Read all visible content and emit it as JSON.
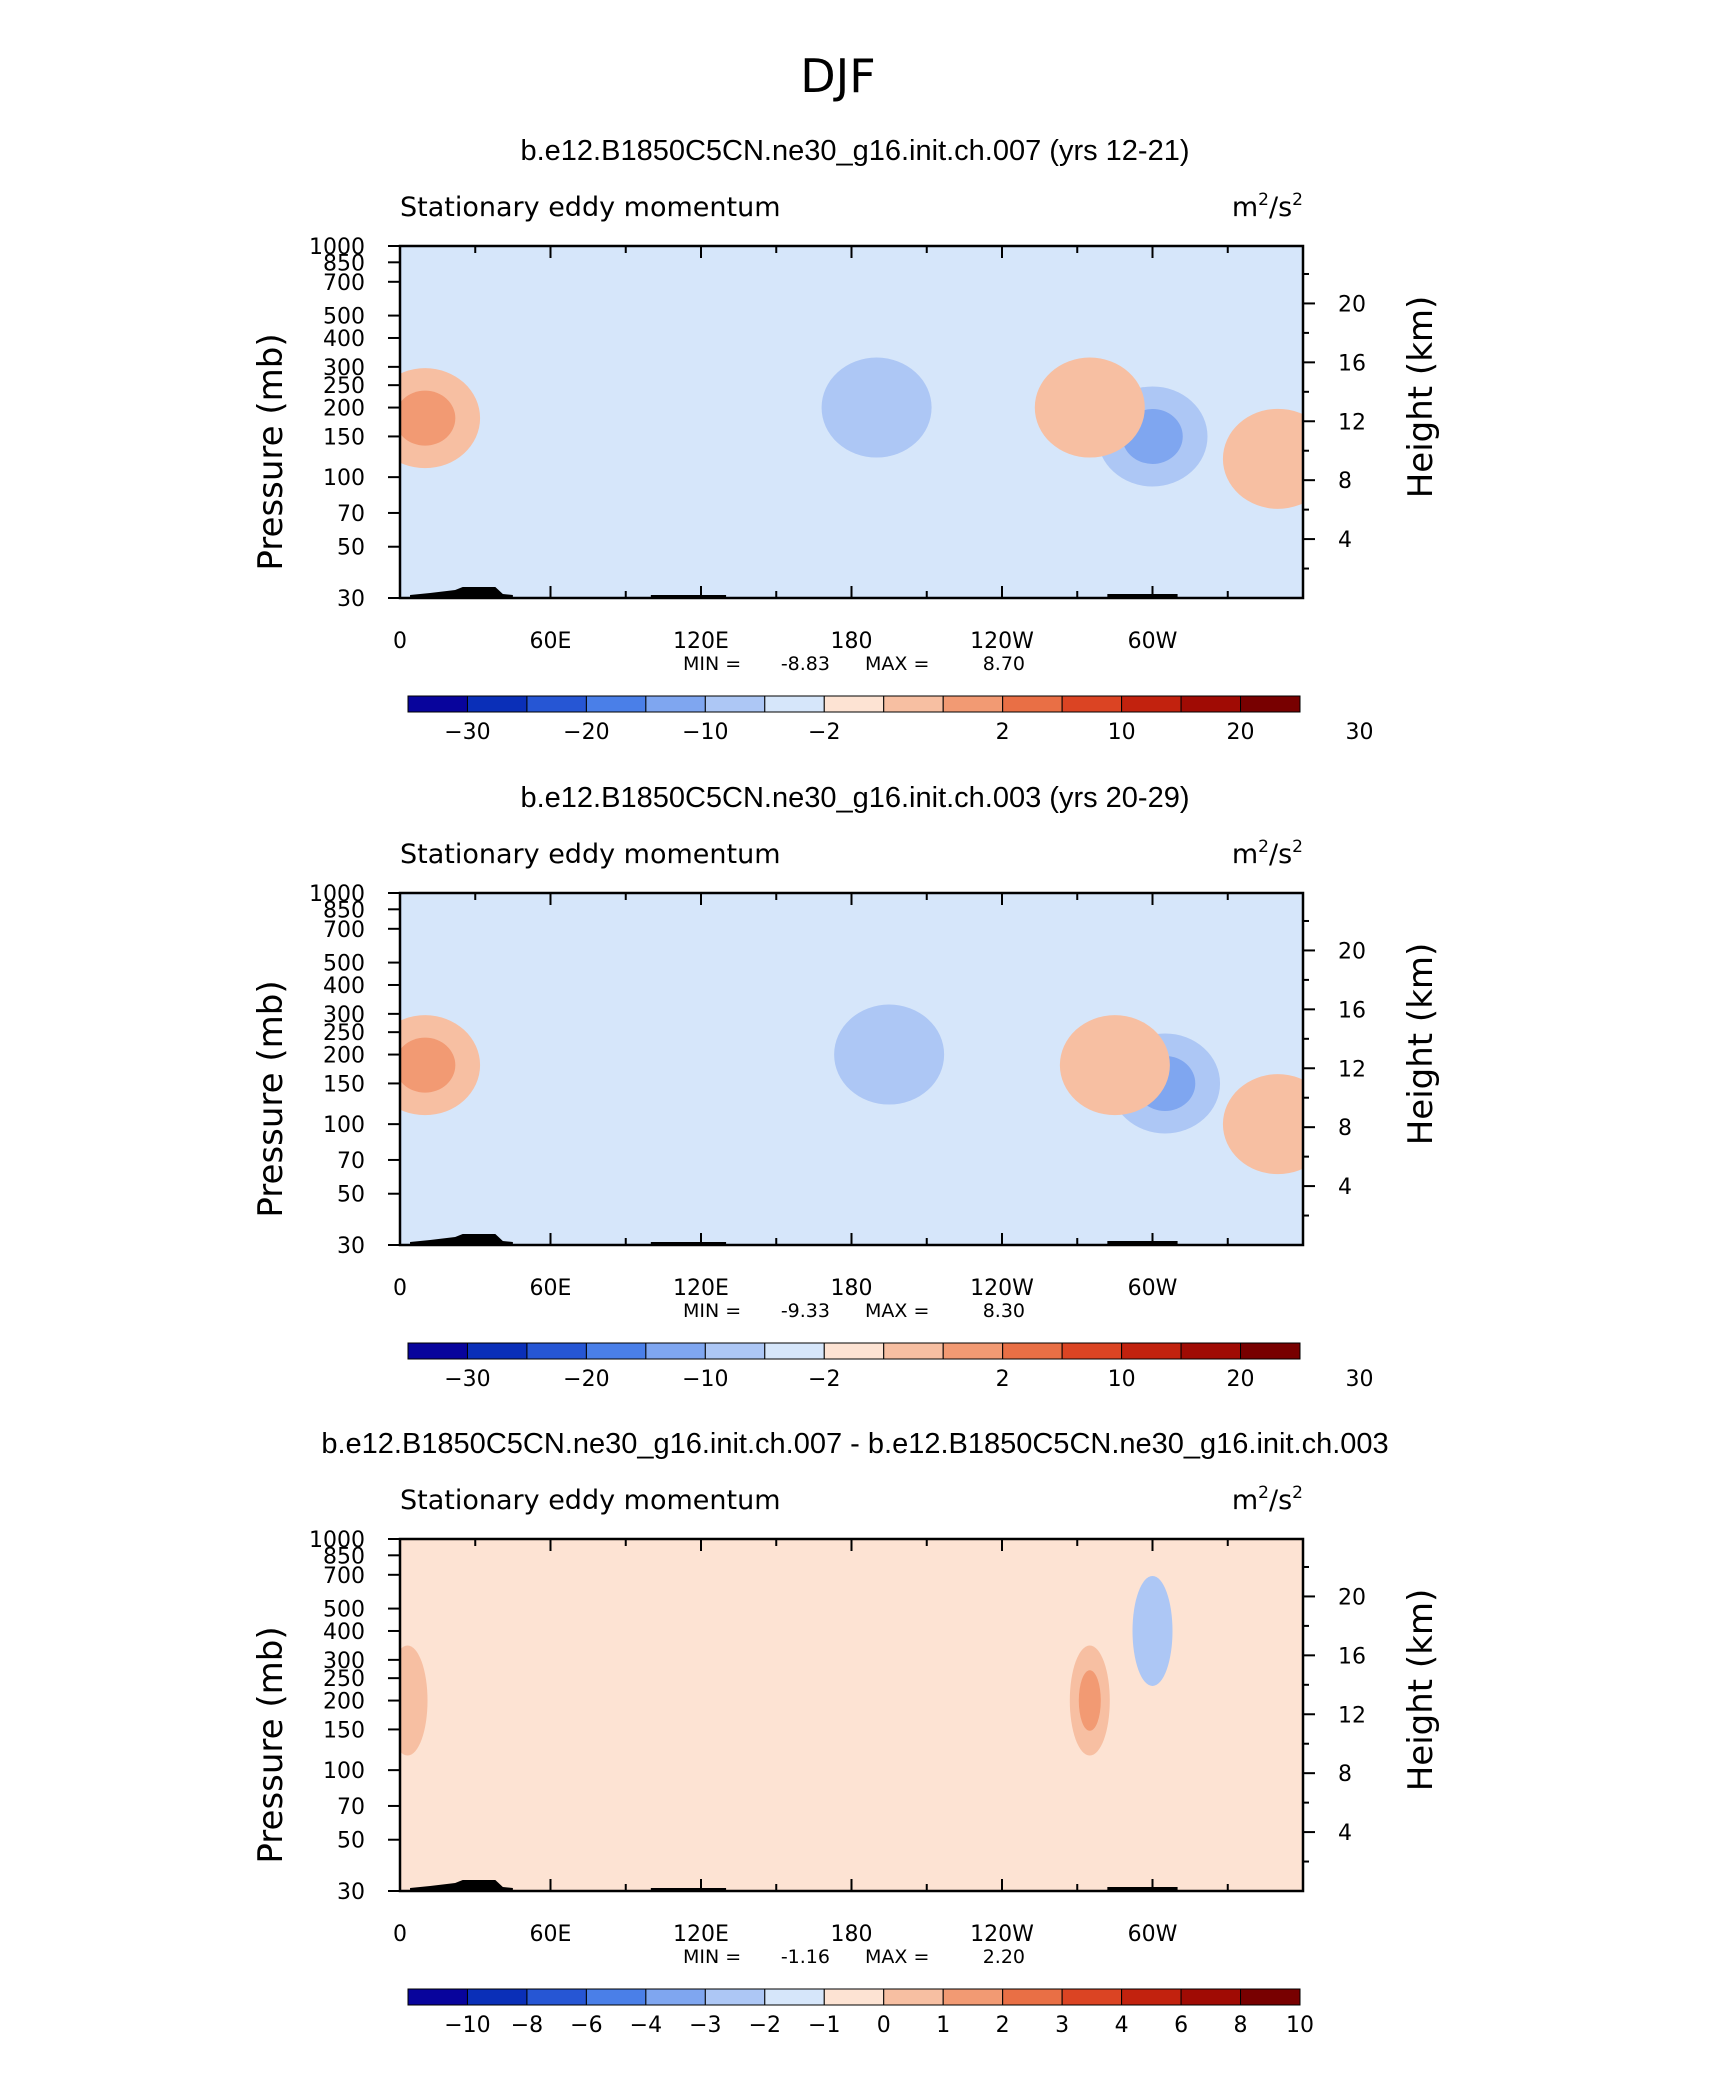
{
  "page_title": "DJF",
  "chart_data": [
    {
      "type": "heatmap",
      "title": "b.e12.B1850C5CN.ne30_g16.init.ch.007 (yrs 12-21)",
      "subtitle_left": "Stationary eddy momentum",
      "units": "m²/s²",
      "units_base": "m",
      "units_mid": "/s",
      "units_exp": "2",
      "ylabel": "Pressure (mb)",
      "ylabel_right": "Height (km)",
      "x_ticks": [
        "0",
        "60E",
        "120E",
        "180",
        "120W",
        "60W"
      ],
      "x_range": [
        "0",
        "360"
      ],
      "y_ticks": [
        "30",
        "50",
        "70",
        "100",
        "150",
        "200",
        "250",
        "300",
        "400",
        "500",
        "700",
        "850",
        "1000"
      ],
      "y_range": [
        1000,
        30
      ],
      "y_scale": "log",
      "y_right_ticks": [
        "20",
        "16",
        "12",
        "8",
        "4"
      ],
      "min_label": "MIN =",
      "min_value": "-8.83",
      "max_label": "MAX =",
      "max_value": "8.70",
      "colorbar_levels": [
        "−30",
        "−20",
        "−10",
        "−2",
        "2",
        "10",
        "20",
        "30"
      ],
      "colorbar_colors": [
        "#08049c",
        "#0a2fb8",
        "#2656d4",
        "#4a7fe8",
        "#7fa6f0",
        "#adc7f5",
        "#d6e6fa",
        "#fde3d3",
        "#f7bfa2",
        "#f29a73",
        "#e96f45",
        "#db4423",
        "#c2220e",
        "#a00b04",
        "#780000"
      ],
      "regions": [
        {
          "lon": 190,
          "p": 200,
          "value": -7,
          "desc": "negative center"
        },
        {
          "lon": 300,
          "p": 150,
          "value": -8.8,
          "desc": "negative center"
        },
        {
          "lon": 10,
          "p": 180,
          "value": 8.7,
          "desc": "positive center"
        },
        {
          "lon": 275,
          "p": 200,
          "value": 6,
          "desc": "positive center"
        },
        {
          "lon": 350,
          "p": 120,
          "value": 4,
          "desc": "positive center"
        }
      ]
    },
    {
      "type": "heatmap",
      "title": "b.e12.B1850C5CN.ne30_g16.init.ch.003 (yrs 20-29)",
      "subtitle_left": "Stationary eddy momentum",
      "units": "m²/s²",
      "units_base": "m",
      "units_mid": "/s",
      "units_exp": "2",
      "ylabel": "Pressure (mb)",
      "ylabel_right": "Height (km)",
      "x_ticks": [
        "0",
        "60E",
        "120E",
        "180",
        "120W",
        "60W"
      ],
      "x_range": [
        "0",
        "360"
      ],
      "y_ticks": [
        "30",
        "50",
        "70",
        "100",
        "150",
        "200",
        "250",
        "300",
        "400",
        "500",
        "700",
        "850",
        "1000"
      ],
      "y_range": [
        1000,
        30
      ],
      "y_scale": "log",
      "y_right_ticks": [
        "20",
        "16",
        "12",
        "8",
        "4"
      ],
      "min_label": "MIN =",
      "min_value": "-9.33",
      "max_label": "MAX =",
      "max_value": "8.30",
      "colorbar_levels": [
        "−30",
        "−20",
        "−10",
        "−2",
        "2",
        "10",
        "20",
        "30"
      ],
      "colorbar_colors": [
        "#08049c",
        "#0a2fb8",
        "#2656d4",
        "#4a7fe8",
        "#7fa6f0",
        "#adc7f5",
        "#d6e6fa",
        "#fde3d3",
        "#f7bfa2",
        "#f29a73",
        "#e96f45",
        "#db4423",
        "#c2220e",
        "#a00b04",
        "#780000"
      ],
      "regions": [
        {
          "lon": 195,
          "p": 200,
          "value": -7,
          "desc": "negative center"
        },
        {
          "lon": 305,
          "p": 150,
          "value": -9.3,
          "desc": "negative center"
        },
        {
          "lon": 10,
          "p": 180,
          "value": 8.3,
          "desc": "positive center"
        },
        {
          "lon": 285,
          "p": 180,
          "value": 6,
          "desc": "positive center"
        },
        {
          "lon": 350,
          "p": 100,
          "value": 4,
          "desc": "positive center"
        }
      ]
    },
    {
      "type": "heatmap",
      "title": "b.e12.B1850C5CN.ne30_g16.init.ch.007 - b.e12.B1850C5CN.ne30_g16.init.ch.003",
      "subtitle_left": "Stationary eddy momentum",
      "units": "m²/s²",
      "units_base": "m",
      "units_mid": "/s",
      "units_exp": "2",
      "ylabel": "Pressure (mb)",
      "ylabel_right": "Height (km)",
      "x_ticks": [
        "0",
        "60E",
        "120E",
        "180",
        "120W",
        "60W"
      ],
      "x_range": [
        "0",
        "360"
      ],
      "y_ticks": [
        "30",
        "50",
        "70",
        "100",
        "150",
        "200",
        "250",
        "300",
        "400",
        "500",
        "700",
        "850",
        "1000"
      ],
      "y_range": [
        1000,
        30
      ],
      "y_scale": "log",
      "y_right_ticks": [
        "20",
        "16",
        "12",
        "8",
        "4"
      ],
      "min_label": "MIN =",
      "min_value": "-1.16",
      "max_label": "MAX =",
      "max_value": "2.20",
      "colorbar_levels": [
        "−10",
        "−8",
        "−6",
        "−4",
        "−3",
        "−2",
        "−1",
        "0",
        "1",
        "2",
        "3",
        "4",
        "6",
        "8",
        "10"
      ],
      "colorbar_colors": [
        "#08049c",
        "#0a2fb8",
        "#2656d4",
        "#4a7fe8",
        "#7fa6f0",
        "#adc7f5",
        "#d6e6fa",
        "#fde3d3",
        "#f7bfa2",
        "#f29a73",
        "#e96f45",
        "#db4423",
        "#c2220e",
        "#a00b04",
        "#780000"
      ],
      "regions": [
        {
          "lon": 275,
          "p": 200,
          "value": 2.2,
          "desc": "positive center"
        },
        {
          "lon": 3,
          "p": 200,
          "value": 1.2,
          "desc": "positive center"
        },
        {
          "lon": 300,
          "p": 400,
          "value": -1.16,
          "desc": "negative center"
        }
      ]
    }
  ]
}
